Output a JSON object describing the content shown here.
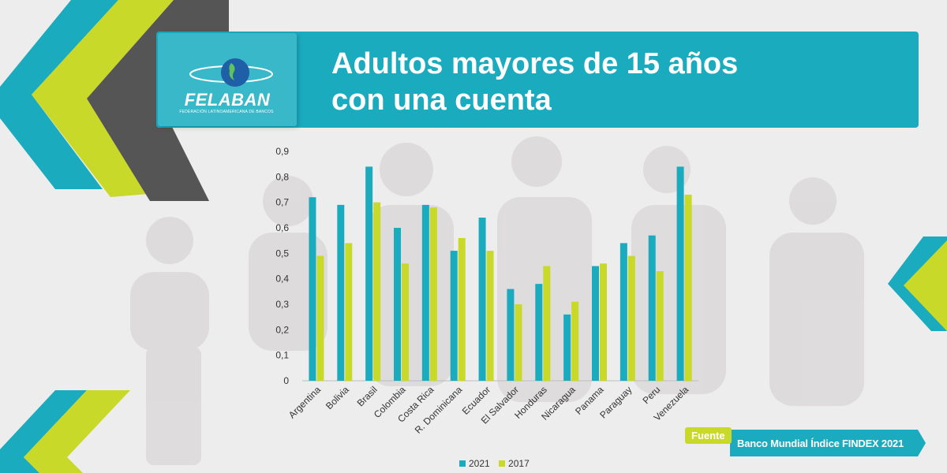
{
  "header": {
    "title_line1": "Adultos mayores de 15 años",
    "title_line2": "con una cuenta"
  },
  "logo": {
    "name": "FELABAN",
    "subtitle": "FEDERACIÓN LATINOAMERICANA DE BANCOS"
  },
  "source": {
    "tag": "Fuente",
    "text": "Banco Mundial Índice FINDEX 2021"
  },
  "colors": {
    "teal": "#1aabbe",
    "lime": "#c9d92a",
    "dark_gray": "#5a5a5a",
    "background": "#ededed"
  },
  "chart_data": {
    "type": "bar",
    "categories": [
      "Argentina",
      "Bolivia",
      "Brasil",
      "Colombia",
      "Costa Rica",
      "R. Dominicana",
      "Ecuador",
      "El Salvador",
      "Honduras",
      "Nicaragua",
      "Panama",
      "Paraguay",
      "Peru",
      "Venezuela"
    ],
    "series": [
      {
        "name": "2021",
        "color": "#1aabbe",
        "values": [
          0.72,
          0.69,
          0.84,
          0.6,
          0.69,
          0.51,
          0.64,
          0.36,
          0.38,
          0.26,
          0.45,
          0.54,
          0.57,
          0.84
        ]
      },
      {
        "name": "2017",
        "color": "#c9d92a",
        "values": [
          0.49,
          0.54,
          0.7,
          0.46,
          0.68,
          0.56,
          0.51,
          0.3,
          0.45,
          0.31,
          0.46,
          0.49,
          0.43,
          0.73
        ]
      }
    ],
    "y_ticks": [
      "0",
      "0,1",
      "0,2",
      "0,3",
      "0,4",
      "0,5",
      "0,6",
      "0,7",
      "0,8",
      "0,9"
    ],
    "ylim": [
      0,
      0.9
    ],
    "legend_position": "bottom",
    "grid": false
  }
}
